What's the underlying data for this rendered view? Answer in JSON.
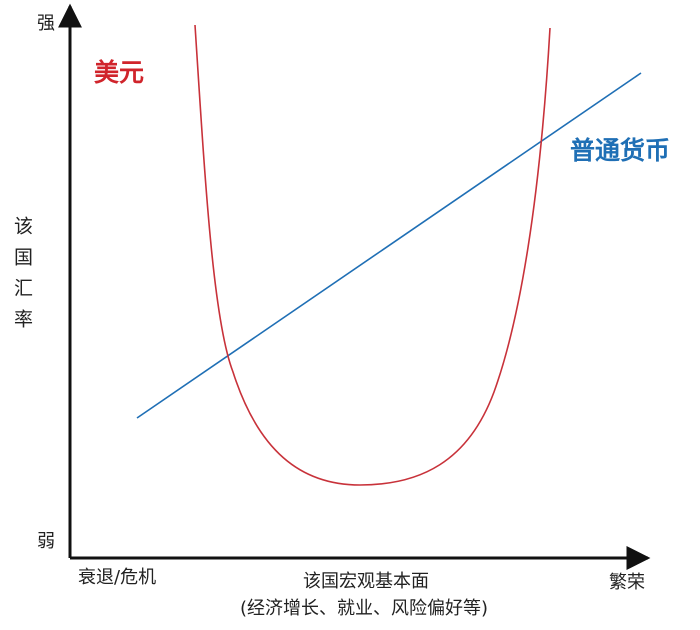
{
  "y_axis": {
    "top": "强",
    "bottom": "弱",
    "label": "该国汇率"
  },
  "x_axis": {
    "left": "衰退/危机",
    "right": "繁荣",
    "label": "该国宏观基本面",
    "sublabel": "(经济增长、就业、风险偏好等)"
  },
  "curves": [
    {
      "label": "美元"
    },
    {
      "label": "普通货币"
    }
  ]
}
